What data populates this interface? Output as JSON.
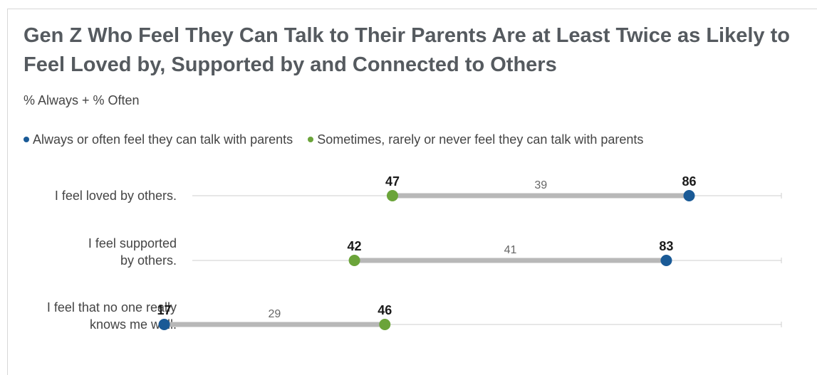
{
  "chart_data": {
    "type": "dumbbell",
    "title": "Gen Z Who Feel They Can Talk to Their Parents Are at Least Twice as Likely to Feel Loved by, Supported by and Connected to Others",
    "subtitle": "% Always + % Often",
    "series": [
      {
        "name": "Always or often feel they can talk with parents",
        "color": "#1a5a96"
      },
      {
        "name": "Sometimes, rarely or never feel they can talk with parents",
        "color": "#6ba43a"
      }
    ],
    "categories": [
      [
        "I feel loved by others."
      ],
      [
        "I feel supported",
        "by others."
      ],
      [
        "I feel that no one really",
        "knows me well."
      ]
    ],
    "values": [
      {
        "always_often": 86,
        "sometimes_rarely_never": 47,
        "gap": 39
      },
      {
        "always_often": 83,
        "sometimes_rarely_never": 42,
        "gap": 41
      },
      {
        "always_often": 17,
        "sometimes_rarely_never": 46,
        "gap": 29
      }
    ],
    "xlim": [
      0,
      100
    ],
    "grid": false,
    "legend_position": "top-left",
    "colors": {
      "connector": "#b8b8b8",
      "axis_line": "#cfcfcf"
    }
  }
}
